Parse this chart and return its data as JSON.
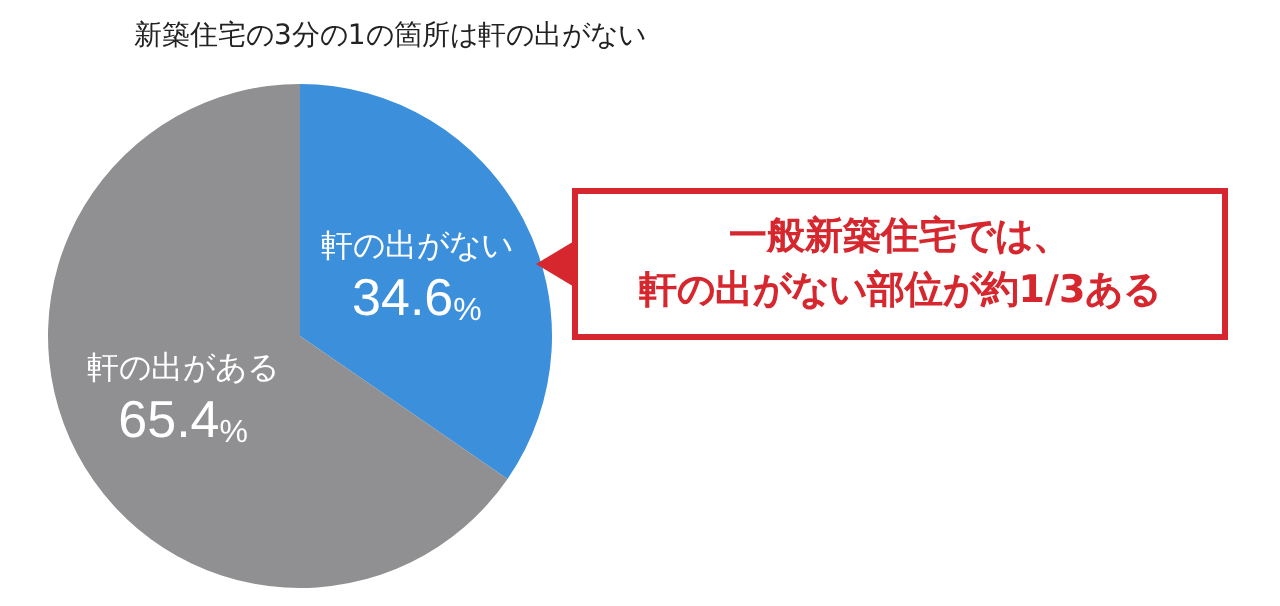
{
  "chart_data": {
    "type": "pie",
    "title": "新築住宅の3分の1の箇所は軒の出がない",
    "categories": [
      "軒の出がない",
      "軒の出がある"
    ],
    "values": [
      34.6,
      65.4
    ],
    "colors": [
      "#3b8fdb",
      "#909092"
    ],
    "value_labels": [
      "34.6%",
      "65.4%"
    ],
    "legend": false,
    "annotations": [
      "一般新築住宅では、",
      "軒の出がない部位が約1/3ある"
    ]
  }
}
